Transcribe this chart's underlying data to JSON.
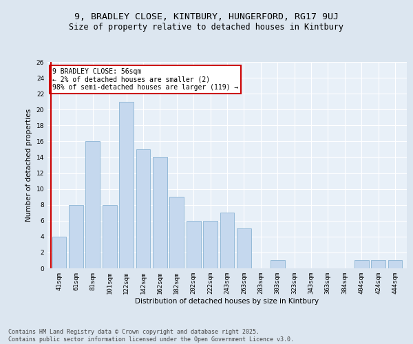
{
  "title1": "9, BRADLEY CLOSE, KINTBURY, HUNGERFORD, RG17 9UJ",
  "title2": "Size of property relative to detached houses in Kintbury",
  "xlabel": "Distribution of detached houses by size in Kintbury",
  "ylabel": "Number of detached properties",
  "categories": [
    "41sqm",
    "61sqm",
    "81sqm",
    "101sqm",
    "122sqm",
    "142sqm",
    "162sqm",
    "182sqm",
    "202sqm",
    "222sqm",
    "243sqm",
    "263sqm",
    "283sqm",
    "303sqm",
    "323sqm",
    "343sqm",
    "363sqm",
    "384sqm",
    "404sqm",
    "424sqm",
    "444sqm"
  ],
  "values": [
    4,
    8,
    16,
    8,
    21,
    15,
    14,
    9,
    6,
    6,
    7,
    5,
    0,
    1,
    0,
    0,
    0,
    0,
    1,
    1,
    1
  ],
  "bar_color": "#c5d8ee",
  "bar_edge_color": "#8ab4d4",
  "property_line_color": "#cc0000",
  "annotation_text": "9 BRADLEY CLOSE: 56sqm\n← 2% of detached houses are smaller (2)\n98% of semi-detached houses are larger (119) →",
  "annotation_box_color": "#ffffff",
  "annotation_box_edge_color": "#cc0000",
  "ylim": [
    0,
    26
  ],
  "yticks": [
    0,
    2,
    4,
    6,
    8,
    10,
    12,
    14,
    16,
    18,
    20,
    22,
    24,
    26
  ],
  "footer_text": "Contains HM Land Registry data © Crown copyright and database right 2025.\nContains public sector information licensed under the Open Government Licence v3.0.",
  "bg_color": "#dce6f0",
  "plot_bg_color": "#e8f0f8",
  "grid_color": "#ffffff",
  "title_fontsize": 9.5,
  "subtitle_fontsize": 8.5,
  "axis_label_fontsize": 7.5,
  "tick_fontsize": 6.5,
  "footer_fontsize": 6.0
}
